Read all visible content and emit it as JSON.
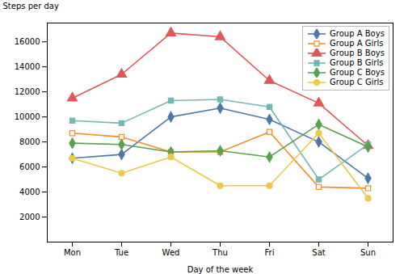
{
  "chart_data": {
    "type": "line",
    "categories": [
      "Mon",
      "Tue",
      "Wed",
      "Thu",
      "Fri",
      "Sat",
      "Sun"
    ],
    "series": [
      {
        "name": "Group A Boys",
        "values": [
          6700,
          7000,
          10000,
          10700,
          9800,
          8000,
          5100
        ],
        "marker": "diamond"
      },
      {
        "name": "Group A Girls",
        "values": [
          8700,
          8400,
          7200,
          7200,
          8800,
          4400,
          4300
        ],
        "marker": "square-open"
      },
      {
        "name": "Group B Boys",
        "values": [
          11500,
          13400,
          16700,
          16400,
          12900,
          11100,
          7700
        ],
        "marker": "triangle"
      },
      {
        "name": "Group B Girls",
        "values": [
          9700,
          9500,
          11300,
          11400,
          10800,
          5000,
          7800
        ],
        "marker": "square"
      },
      {
        "name": "Group C Boys",
        "values": [
          7900,
          7800,
          7200,
          7300,
          6800,
          9400,
          7600
        ],
        "marker": "diamond"
      },
      {
        "name": "Group C Girls",
        "values": [
          6700,
          5500,
          6800,
          4500,
          4500,
          8700,
          3500
        ],
        "marker": "circle"
      }
    ],
    "xlabel": "Day of the week",
    "ylabel": "Steps per day",
    "ylim": [
      0,
      17500
    ],
    "yticks": [
      2000,
      4000,
      6000,
      8000,
      10000,
      12000,
      14000,
      16000
    ],
    "grid": false,
    "legend": "upper right"
  }
}
